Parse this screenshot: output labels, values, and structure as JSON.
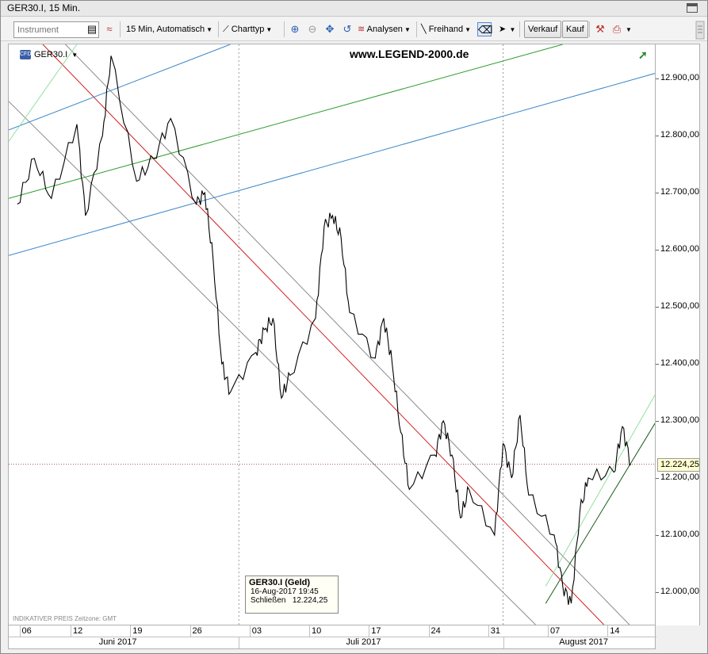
{
  "window": {
    "title": "GER30.I, 15 Min."
  },
  "toolbar": {
    "instrument_placeholder": "Instrument",
    "interval_label": "15 Min,",
    "interval_mode": "Automatisch",
    "charttype_label": "Charttyp",
    "analysen_label": "Analysen",
    "freihand_label": "Freihand",
    "verkauf_label": "Verkauf",
    "kauf_label": "Kauf"
  },
  "chart": {
    "instrument": "GER30.I",
    "instrument_icon_text": "CFD",
    "site": "www.LEGEND-2000.de",
    "footer_note": "INDIKATIVER PREIS    Zeitzone: GMT",
    "current_price_label": "12.224,25"
  },
  "tooltip": {
    "title": "GER30.I (Geld)",
    "datetime": "16-Aug-2017 19:45",
    "close_label": "Schließen",
    "close_value": "12.224,25"
  },
  "colors": {
    "price_line": "#000000",
    "red_channel": "#d22020",
    "gray_channel": "#8a8a8a",
    "blue_channel": "#3a86c8",
    "green_channel": "#2a9a2a",
    "light_green": "#90e0a0",
    "current_price_line": "#b05050"
  },
  "chart_data": {
    "type": "line",
    "title": "",
    "xlabel": "",
    "ylabel": "",
    "ylim": [
      11940,
      12960
    ],
    "y_ticks": [
      "12.900,00",
      "12.800,00",
      "12.700,00",
      "12.600,00",
      "12.500,00",
      "12.400,00",
      "12.300,00",
      "12.200,00",
      "12.100,00",
      "12.000,00"
    ],
    "x_day_ticks": [
      "06",
      "12",
      "19",
      "26",
      "03",
      "10",
      "17",
      "24",
      "31",
      "07",
      "14"
    ],
    "x_month_labels": [
      "Juni 2017",
      "Juli 2017",
      "August 2017"
    ],
    "grid": false,
    "series": [
      {
        "x": [
          "2017-06-05",
          "2017-06-07",
          "2017-06-09",
          "2017-06-12",
          "2017-06-13",
          "2017-06-15",
          "2017-06-16",
          "2017-06-19",
          "2017-06-21",
          "2017-06-23",
          "2017-06-26",
          "2017-06-27",
          "2017-06-28",
          "2017-06-29",
          "2017-06-30",
          "2017-07-03",
          "2017-07-04",
          "2017-07-05",
          "2017-07-06",
          "2017-07-07",
          "2017-07-10",
          "2017-07-11",
          "2017-07-12",
          "2017-07-13",
          "2017-07-14",
          "2017-07-17",
          "2017-07-18",
          "2017-07-19",
          "2017-07-20",
          "2017-07-21",
          "2017-07-24",
          "2017-07-25",
          "2017-07-26",
          "2017-07-27",
          "2017-07-28",
          "2017-07-31",
          "2017-08-01",
          "2017-08-02",
          "2017-08-03",
          "2017-08-04",
          "2017-08-07",
          "2017-08-08",
          "2017-08-09",
          "2017-08-10",
          "2017-08-11",
          "2017-08-14",
          "2017-08-15",
          "2017-08-16"
        ],
        "values": [
          12680,
          12760,
          12690,
          12820,
          12660,
          12800,
          12940,
          12720,
          12760,
          12830,
          12680,
          12700,
          12580,
          12400,
          12350,
          12420,
          12460,
          12480,
          12340,
          12380,
          12480,
          12640,
          12660,
          12620,
          12490,
          12410,
          12480,
          12400,
          12280,
          12180,
          12240,
          12300,
          12240,
          12130,
          12180,
          12100,
          12260,
          12200,
          12310,
          12170,
          12100,
          12010,
          11980,
          12140,
          12200,
          12210,
          12290,
          12224
        ]
      }
    ]
  }
}
